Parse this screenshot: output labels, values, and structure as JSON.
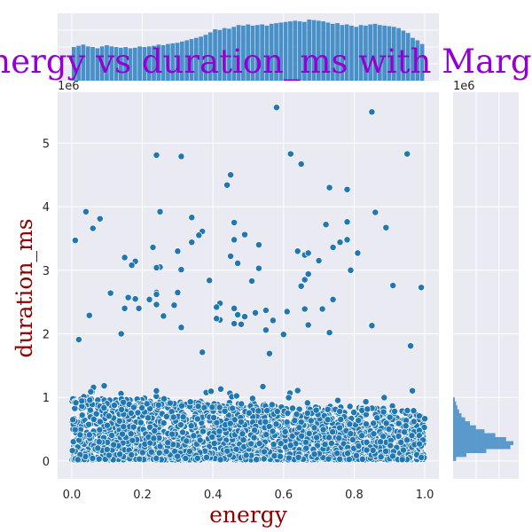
{
  "chart_data": {
    "type": "scatter",
    "title": "Scatter Plot of energy vs duration_ms with Marginal Distribution",
    "xlabel": "energy",
    "ylabel": "duration_ms",
    "y_offset_label": "1e6",
    "marginal_y_offset_label": "1e6",
    "xlim": [
      -0.04,
      1.04
    ],
    "ylim": [
      -0.28,
      5.8
    ],
    "x_ticks": [
      0.0,
      0.2,
      0.4,
      0.6,
      0.8,
      1.0
    ],
    "x_tick_labels": [
      "0.0",
      "0.2",
      "0.4",
      "0.6",
      "0.8",
      "1.0"
    ],
    "y_ticks": [
      0,
      1,
      2,
      3,
      4,
      5
    ],
    "y_tick_labels": [
      "0",
      "1",
      "2",
      "3",
      "4",
      "5"
    ],
    "y_units": "duration_ms (x1e6)",
    "grid": true,
    "background": "#eaeaf2",
    "point_color": "#1f77b4",
    "histogram_color": "#4a90c8",
    "dense_band": {
      "x_range": [
        0.0,
        1.0
      ],
      "y_range": [
        0.0,
        1.0
      ],
      "approx_points": 2500
    },
    "outliers": [
      [
        0.58,
        5.56
      ],
      [
        0.85,
        5.49
      ],
      [
        0.62,
        4.83
      ],
      [
        0.95,
        4.83
      ],
      [
        0.24,
        4.81
      ],
      [
        0.31,
        4.79
      ],
      [
        0.65,
        4.67
      ],
      [
        0.45,
        4.5
      ],
      [
        0.44,
        4.34
      ],
      [
        0.73,
        4.3
      ],
      [
        0.78,
        4.27
      ],
      [
        0.04,
        3.92
      ],
      [
        0.25,
        3.92
      ],
      [
        0.86,
        3.91
      ],
      [
        0.08,
        3.81
      ],
      [
        0.34,
        3.83
      ],
      [
        0.78,
        3.76
      ],
      [
        0.46,
        3.75
      ],
      [
        0.72,
        3.72
      ],
      [
        0.06,
        3.66
      ],
      [
        0.89,
        3.67
      ],
      [
        0.37,
        3.61
      ],
      [
        0.49,
        3.56
      ],
      [
        0.36,
        3.55
      ],
      [
        0.01,
        3.47
      ],
      [
        0.46,
        3.48
      ],
      [
        0.78,
        3.48
      ],
      [
        0.76,
        3.44
      ],
      [
        0.34,
        3.44
      ],
      [
        0.53,
        3.4
      ],
      [
        0.74,
        3.36
      ],
      [
        0.23,
        3.36
      ],
      [
        0.64,
        3.3
      ],
      [
        0.81,
        3.27
      ],
      [
        0.66,
        3.24
      ],
      [
        0.67,
        3.27
      ],
      [
        0.3,
        3.3
      ],
      [
        0.15,
        3.2
      ],
      [
        0.45,
        3.22
      ],
      [
        0.18,
        3.14
      ],
      [
        0.7,
        3.15
      ],
      [
        0.47,
        3.11
      ],
      [
        0.17,
        3.08
      ],
      [
        0.25,
        3.05
      ],
      [
        0.24,
        3.04
      ],
      [
        0.53,
        3.03
      ],
      [
        0.31,
        3.01
      ],
      [
        0.79,
        3.0
      ],
      [
        0.67,
        2.94
      ],
      [
        0.66,
        2.85
      ],
      [
        0.39,
        2.84
      ],
      [
        0.51,
        2.83
      ],
      [
        0.91,
        2.76
      ],
      [
        0.99,
        2.73
      ],
      [
        0.65,
        2.75
      ],
      [
        0.24,
        2.65
      ],
      [
        0.3,
        2.65
      ],
      [
        0.11,
        2.64
      ],
      [
        0.24,
        2.62
      ],
      [
        0.16,
        2.57
      ],
      [
        0.18,
        2.55
      ],
      [
        0.22,
        2.54
      ],
      [
        0.74,
        2.54
      ],
      [
        0.42,
        2.48
      ],
      [
        0.29,
        2.45
      ],
      [
        0.24,
        2.46
      ],
      [
        0.41,
        2.42
      ],
      [
        0.15,
        2.4
      ],
      [
        0.19,
        2.4
      ],
      [
        0.46,
        2.4
      ],
      [
        0.55,
        2.37
      ],
      [
        0.61,
        2.35
      ],
      [
        0.66,
        2.39
      ],
      [
        0.71,
        2.39
      ],
      [
        0.52,
        2.33
      ],
      [
        0.47,
        2.3
      ],
      [
        0.05,
        2.29
      ],
      [
        0.49,
        2.27
      ],
      [
        0.42,
        2.22
      ],
      [
        0.26,
        2.28
      ],
      [
        0.57,
        2.21
      ],
      [
        0.41,
        2.24
      ],
      [
        0.67,
        2.14
      ],
      [
        0.46,
        2.16
      ],
      [
        0.85,
        2.13
      ],
      [
        0.48,
        2.15
      ],
      [
        0.31,
        2.1
      ],
      [
        0.55,
        2.06
      ],
      [
        0.73,
        2.02
      ],
      [
        0.6,
        1.99
      ],
      [
        0.14,
        2.0
      ],
      [
        0.02,
        1.91
      ],
      [
        0.96,
        1.81
      ],
      [
        0.37,
        1.71
      ],
      [
        0.56,
        1.69
      ]
    ],
    "marginal_x_hist": {
      "bin_start": 0.0,
      "bin_end": 1.0,
      "bins": 75,
      "relative_heights": [
        0.55,
        0.57,
        0.59,
        0.56,
        0.55,
        0.53,
        0.56,
        0.58,
        0.56,
        0.55,
        0.54,
        0.55,
        0.53,
        0.54,
        0.56,
        0.55,
        0.56,
        0.57,
        0.59,
        0.58,
        0.6,
        0.61,
        0.62,
        0.64,
        0.66,
        0.68,
        0.7,
        0.72,
        0.75,
        0.79,
        0.84,
        0.83,
        0.86,
        0.85,
        0.88,
        0.91,
        0.9,
        0.92,
        0.9,
        0.91,
        0.92,
        0.9,
        0.93,
        0.94,
        0.95,
        0.96,
        0.97,
        0.98,
        0.97,
        0.96,
        1.0,
        0.99,
        0.98,
        0.97,
        0.95,
        0.93,
        0.94,
        0.91,
        0.92,
        0.9,
        0.88,
        0.91,
        0.9,
        0.92,
        0.93,
        0.91,
        0.9,
        0.89,
        0.88,
        0.86,
        0.82,
        0.78,
        0.7,
        0.66,
        0.6
      ]
    },
    "marginal_y_hist": {
      "bin_start": 0.0,
      "bin_end": 1.0,
      "peak_y": 0.2,
      "relative_widths": [
        0.05,
        0.22,
        0.55,
        0.95,
        1.0,
        0.88,
        0.7,
        0.52,
        0.38,
        0.28,
        0.2,
        0.14,
        0.1,
        0.07,
        0.05,
        0.03
      ]
    }
  }
}
